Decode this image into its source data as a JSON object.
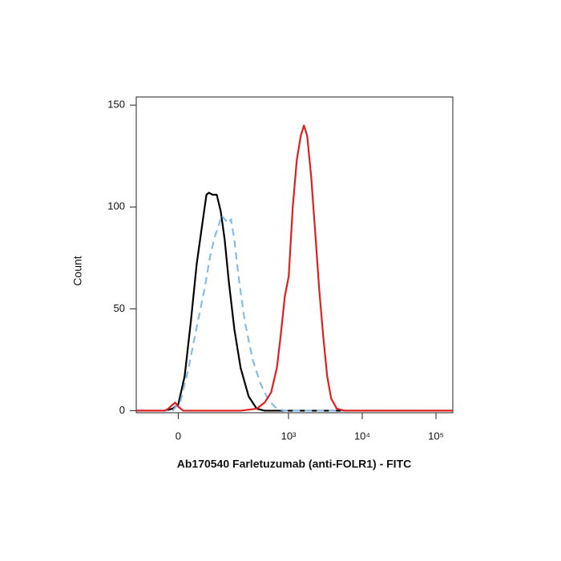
{
  "chart_data": {
    "type": "line",
    "xlabel": "Ab170540 Farletuzumab (anti-FOLR1) - FITC",
    "ylabel": "Count",
    "xscale": "arcsinh",
    "xscale_cofactor": 64,
    "xlim": [
      -110,
      169000
    ],
    "xticks": [
      0,
      {
        "value": 1000,
        "label": "10³"
      },
      {
        "value": 10000,
        "label": "10⁴"
      },
      {
        "value": 100000,
        "label": "10⁵"
      }
    ],
    "ylim": [
      -1,
      154
    ],
    "yticks": [
      0,
      50,
      100,
      150
    ],
    "grid": false,
    "series": [
      {
        "color": "#000000",
        "line_style": "solid",
        "x": [
          -110,
          -28,
          -11,
          0,
          13,
          26,
          39,
          53,
          64,
          71,
          83,
          97,
          112,
          129,
          148,
          179,
          220,
          285,
          368,
          474,
          169000
        ],
        "values": [
          0,
          0,
          1,
          3,
          17,
          44,
          72,
          92,
          106,
          107,
          106,
          106,
          98,
          84,
          64,
          40,
          21,
          7,
          1,
          0,
          0
        ]
      },
      {
        "color": "#85bde8",
        "line_style": "dashed",
        "x": [
          -110,
          -11,
          5,
          21,
          39,
          59,
          75,
          91,
          103,
          115,
          129,
          148,
          160,
          179,
          209,
          251,
          324,
          418,
          538,
          694,
          890,
          169000
        ],
        "values": [
          0,
          0,
          5,
          21,
          41,
          60,
          76,
          86,
          90,
          96,
          94,
          92,
          94,
          84,
          64,
          44,
          25,
          13,
          5,
          1,
          0,
          0
        ]
      },
      {
        "color": "#e02020",
        "line_style": "solid",
        "x": [
          -110,
          -28,
          -20,
          -11,
          -6,
          0,
          10,
          30,
          220,
          368,
          474,
          580,
          694,
          784,
          890,
          1007,
          1142,
          1295,
          1467,
          1620,
          1791,
          2030,
          2300,
          2604,
          2950,
          3345,
          3790,
          4520,
          5800,
          169000
        ],
        "values": [
          0,
          0,
          1,
          3,
          4,
          2,
          0,
          0,
          0,
          1,
          4,
          9,
          21,
          37,
          56,
          66,
          100,
          123,
          135,
          140,
          135,
          115,
          88,
          60,
          37,
          17,
          6,
          1,
          0,
          0
        ]
      }
    ]
  }
}
